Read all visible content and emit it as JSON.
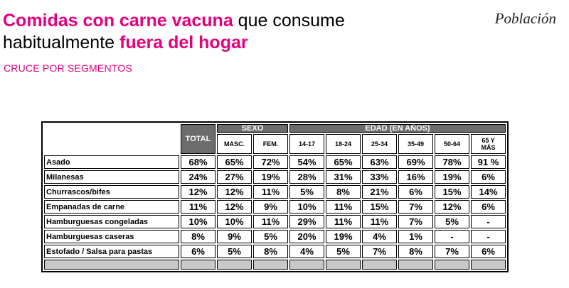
{
  "header": {
    "title_part1": "Comidas con carne vacuna",
    "title_part2": " que consume",
    "title_part3": "habitualmente ",
    "title_part4": "fuera del hogar",
    "subtitle": "CRUCE POR SEGMENTOS",
    "population": "Población"
  },
  "colors": {
    "accent": "#e6007e",
    "header_bg": "#6c6c6c",
    "footer_bg": "#c8c8c8"
  },
  "table": {
    "total_header": "TOTAL",
    "sexo_header": "SEXO",
    "edad_header": "EDAD (EN AÑOS)",
    "sex_cols": [
      "MASC.",
      "FEM."
    ],
    "age_cols": [
      "14-17",
      "18-24",
      "25-34",
      "35-49",
      "50-64",
      "65 Y MÁS"
    ],
    "rows": [
      {
        "label": "Asado",
        "values": [
          "68%",
          "65%",
          "72%",
          "54%",
          "65%",
          "63%",
          "69%",
          "78%",
          "91 %"
        ]
      },
      {
        "label": "Milanesas",
        "values": [
          "24%",
          "27%",
          "19%",
          "28%",
          "31%",
          "33%",
          "16%",
          "19%",
          "6%"
        ]
      },
      {
        "label": "Churrascos/bifes",
        "values": [
          "12%",
          "12%",
          "11%",
          "5%",
          "8%",
          "21%",
          "6%",
          "15%",
          "14%"
        ]
      },
      {
        "label": "Empanadas de carne",
        "values": [
          "11%",
          "12%",
          "9%",
          "10%",
          "11%",
          "15%",
          "7%",
          "12%",
          "6%"
        ]
      },
      {
        "label": "Hamburguesas congeladas",
        "values": [
          "10%",
          "10%",
          "11%",
          "29%",
          "11%",
          "11%",
          "7%",
          "5%",
          "-"
        ]
      },
      {
        "label": "Hamburguesas caseras",
        "values": [
          "8%",
          "9%",
          "5%",
          "20%",
          "19%",
          "4%",
          "1%",
          "-",
          "-"
        ]
      },
      {
        "label": "Estofado / Salsa para pastas",
        "values": [
          "6%",
          "5%",
          "8%",
          "4%",
          "5%",
          "7%",
          "8%",
          "7%",
          "6%"
        ]
      }
    ]
  }
}
